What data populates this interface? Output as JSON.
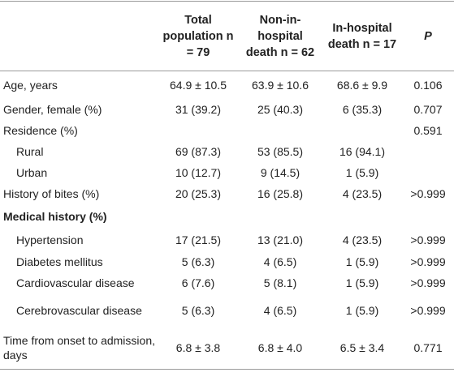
{
  "table": {
    "columns": [
      {
        "label": "Total population",
        "n": "n = 79"
      },
      {
        "label": "Non-in-hospital death",
        "n": "n = 62"
      },
      {
        "label": "In-hospital death",
        "n": "n = 17"
      },
      {
        "label": "P",
        "n": null
      }
    ],
    "rows": [
      {
        "label": "Age, years",
        "indent": false,
        "bold": false,
        "cells": [
          "64.9 ± 10.5",
          "63.9 ± 10.6",
          "68.6 ± 9.9",
          "0.106"
        ]
      },
      {
        "label": "Gender, female (%)",
        "indent": false,
        "bold": false,
        "cells": [
          "31 (39.2)",
          "25 (40.3)",
          "6 (35.3)",
          "0.707"
        ]
      },
      {
        "label": "Residence (%)",
        "indent": false,
        "bold": false,
        "cells": [
          null,
          null,
          null,
          "0.591"
        ]
      },
      {
        "label": "Rural",
        "indent": true,
        "bold": false,
        "cells": [
          "69 (87.3)",
          "53 (85.5)",
          "16 (94.1)",
          null
        ]
      },
      {
        "label": "Urban",
        "indent": true,
        "bold": false,
        "cells": [
          "10 (12.7)",
          "9 (14.5)",
          "1 (5.9)",
          null
        ]
      },
      {
        "label": "History of bites (%)",
        "indent": false,
        "bold": false,
        "cells": [
          "20 (25.3)",
          "16 (25.8)",
          "4 (23.5)",
          ">0.999"
        ]
      },
      {
        "label": "Medical history (%)",
        "indent": false,
        "bold": true,
        "cells": [
          null,
          null,
          null,
          null
        ]
      },
      {
        "label": "Hypertension",
        "indent": true,
        "bold": false,
        "cells": [
          "17 (21.5)",
          "13 (21.0)",
          "4 (23.5)",
          ">0.999"
        ]
      },
      {
        "label": "Diabetes mellitus",
        "indent": true,
        "bold": false,
        "cells": [
          "5 (6.3)",
          "4 (6.5)",
          "1 (5.9)",
          ">0.999"
        ]
      },
      {
        "label": "Cardiovascular disease",
        "indent": true,
        "bold": false,
        "cells": [
          "6 (7.6)",
          "5 (8.1)",
          "1 (5.9)",
          ">0.999"
        ]
      },
      {
        "label": "Cerebrovascular disease",
        "indent": true,
        "bold": false,
        "cells": [
          "5 (6.3)",
          "4 (6.5)",
          "1 (5.9)",
          ">0.999"
        ]
      },
      {
        "label": "Time from onset to admission, days",
        "indent": false,
        "bold": false,
        "cells": [
          "6.8 ± 3.8",
          "6.8 ± 4.0",
          "6.5 ± 3.4",
          "0.771"
        ]
      }
    ]
  }
}
